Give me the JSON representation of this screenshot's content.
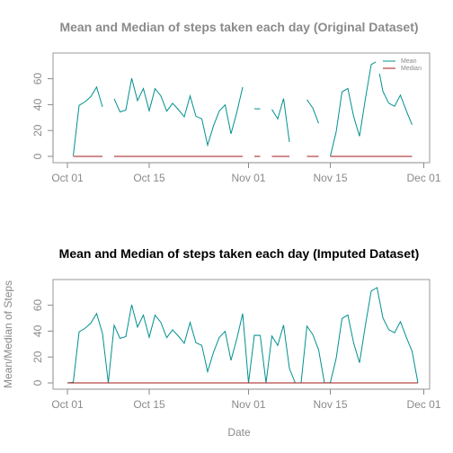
{
  "colors": {
    "mean": "#00908f",
    "median": "#a61919",
    "axis": "#8a8a8a",
    "frame": "#9a9a9a",
    "title1": "#8a8a8a",
    "title2": "#000000"
  },
  "shared": {
    "xlabel": "Date",
    "ylabel": "Mean/Median of Steps",
    "x_ticks": [
      "Oct 01",
      "Oct 15",
      "Nov 01",
      "Nov 15",
      "Dec 01"
    ]
  },
  "chart_data": [
    {
      "type": "line",
      "title": "Mean and Median of steps taken each day (Original Dataset)",
      "x": [
        "2012-10-02",
        "2012-10-03",
        "2012-10-04",
        "2012-10-05",
        "2012-10-06",
        "2012-10-07",
        "2012-10-09",
        "2012-10-10",
        "2012-10-11",
        "2012-10-12",
        "2012-10-13",
        "2012-10-14",
        "2012-10-15",
        "2012-10-16",
        "2012-10-17",
        "2012-10-18",
        "2012-10-19",
        "2012-10-20",
        "2012-10-21",
        "2012-10-22",
        "2012-10-23",
        "2012-10-24",
        "2012-10-25",
        "2012-10-26",
        "2012-10-27",
        "2012-10-28",
        "2012-10-29",
        "2012-10-30",
        "2012-10-31",
        "2012-11-02",
        "2012-11-03",
        "2012-11-05",
        "2012-11-06",
        "2012-11-07",
        "2012-11-08",
        "2012-11-11",
        "2012-11-12",
        "2012-11-13",
        "2012-11-15",
        "2012-11-16",
        "2012-11-17",
        "2012-11-18",
        "2012-11-19",
        "2012-11-20",
        "2012-11-21",
        "2012-11-22",
        "2012-11-23",
        "2012-11-24",
        "2012-11-25",
        "2012-11-26",
        "2012-11-27",
        "2012-11-28",
        "2012-11-29"
      ],
      "series": [
        {
          "name": "Mean",
          "values": [
            0.44,
            39.42,
            42.07,
            46.16,
            53.54,
            38.25,
            44.48,
            34.38,
            35.78,
            60.35,
            43.15,
            52.42,
            35.2,
            52.38,
            46.71,
            34.92,
            41.07,
            36.09,
            30.63,
            46.74,
            30.97,
            29.01,
            8.65,
            23.53,
            35.14,
            39.78,
            17.42,
            34.09,
            53.52,
            36.81,
            36.7,
            36.25,
            28.94,
            44.73,
            11.18,
            43.78,
            37.38,
            25.47,
            0.14,
            18.89,
            49.79,
            52.47,
            30.7,
            15.53,
            44.4,
            70.93,
            73.59,
            50.27,
            41.09,
            38.76,
            47.38,
            35.36,
            24.47
          ]
        },
        {
          "name": "Median",
          "values": [
            0,
            0,
            0,
            0,
            0,
            0,
            0,
            0,
            0,
            0,
            0,
            0,
            0,
            0,
            0,
            0,
            0,
            0,
            0,
            0,
            0,
            0,
            0,
            0,
            0,
            0,
            0,
            0,
            0,
            0,
            0,
            0,
            0,
            0,
            0,
            0,
            0,
            0,
            0,
            0,
            0,
            0,
            0,
            0,
            0,
            0,
            0,
            0,
            0,
            0,
            0,
            0,
            0
          ]
        }
      ],
      "ylim": [
        0,
        75
      ],
      "y_ticks": [
        0,
        20,
        40,
        60
      ],
      "legend": "top-right",
      "legend_entries": [
        "Mean",
        "Median"
      ]
    },
    {
      "type": "line",
      "title": "Mean and Median of steps taken each day (Imputed Dataset)",
      "x": [
        "2012-10-01",
        "2012-10-02",
        "2012-10-03",
        "2012-10-04",
        "2012-10-05",
        "2012-10-06",
        "2012-10-07",
        "2012-10-08",
        "2012-10-09",
        "2012-10-10",
        "2012-10-11",
        "2012-10-12",
        "2012-10-13",
        "2012-10-14",
        "2012-10-15",
        "2012-10-16",
        "2012-10-17",
        "2012-10-18",
        "2012-10-19",
        "2012-10-20",
        "2012-10-21",
        "2012-10-22",
        "2012-10-23",
        "2012-10-24",
        "2012-10-25",
        "2012-10-26",
        "2012-10-27",
        "2012-10-28",
        "2012-10-29",
        "2012-10-30",
        "2012-10-31",
        "2012-11-01",
        "2012-11-02",
        "2012-11-03",
        "2012-11-04",
        "2012-11-05",
        "2012-11-06",
        "2012-11-07",
        "2012-11-08",
        "2012-11-09",
        "2012-11-10",
        "2012-11-11",
        "2012-11-12",
        "2012-11-13",
        "2012-11-14",
        "2012-11-15",
        "2012-11-16",
        "2012-11-17",
        "2012-11-18",
        "2012-11-19",
        "2012-11-20",
        "2012-11-21",
        "2012-11-22",
        "2012-11-23",
        "2012-11-24",
        "2012-11-25",
        "2012-11-26",
        "2012-11-27",
        "2012-11-28",
        "2012-11-29",
        "2012-11-30"
      ],
      "series": [
        {
          "name": "Mean",
          "values": [
            0,
            0.44,
            39.42,
            42.07,
            46.16,
            53.54,
            38.25,
            0,
            44.48,
            34.38,
            35.78,
            60.35,
            43.15,
            52.42,
            35.2,
            52.38,
            46.71,
            34.92,
            41.07,
            36.09,
            30.63,
            46.74,
            30.97,
            29.01,
            8.65,
            23.53,
            35.14,
            39.78,
            17.42,
            34.09,
            53.52,
            0,
            36.81,
            36.7,
            0,
            36.25,
            28.94,
            44.73,
            11.18,
            0,
            0,
            43.78,
            37.38,
            25.47,
            0,
            0.14,
            18.89,
            49.79,
            52.47,
            30.7,
            15.53,
            44.4,
            70.93,
            73.59,
            50.27,
            41.09,
            38.76,
            47.38,
            35.36,
            24.47,
            0
          ]
        },
        {
          "name": "Median",
          "values": [
            0,
            0,
            0,
            0,
            0,
            0,
            0,
            0,
            0,
            0,
            0,
            0,
            0,
            0,
            0,
            0,
            0,
            0,
            0,
            0,
            0,
            0,
            0,
            0,
            0,
            0,
            0,
            0,
            0,
            0,
            0,
            0,
            0,
            0,
            0,
            0,
            0,
            0,
            0,
            0,
            0,
            0,
            0,
            0,
            0,
            0,
            0,
            0,
            0,
            0,
            0,
            0,
            0,
            0,
            0,
            0,
            0,
            0,
            0,
            0,
            0
          ]
        }
      ],
      "ylim": [
        0,
        75
      ],
      "y_ticks": [
        0,
        20,
        40,
        60
      ],
      "legend": "none"
    }
  ]
}
